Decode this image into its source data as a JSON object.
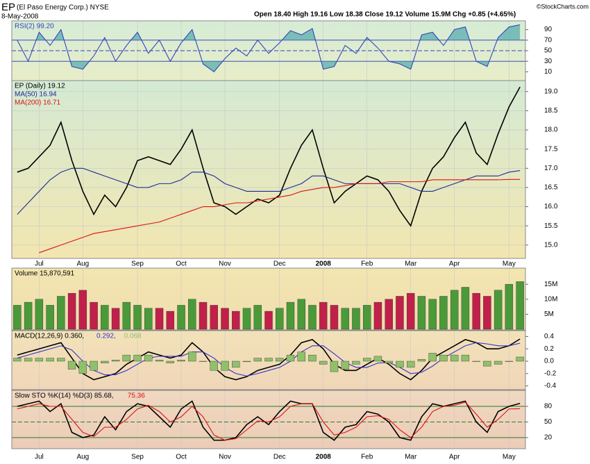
{
  "header": {
    "symbol": "EP",
    "name": "(El Paso Energy Corp.) NYSE",
    "date": "8-May-2008",
    "quote": "Open 18.40  High 19.16  Low 18.38  Close 19.12  Volume 15.9M  Chg +0.85 (+4.65%)",
    "credit": "©StockCharts.com"
  },
  "chart_data": [
    {
      "type": "line",
      "ylim": [
        0,
        100
      ],
      "yticks": [
        10,
        30,
        50,
        70,
        90
      ],
      "reference_lines": [
        30,
        50,
        70
      ],
      "fill_beyond": [
        30,
        70
      ],
      "series": [
        {
          "name": "RSI(2) 99.20",
          "color": "#3344bb",
          "values": [
            70,
            30,
            85,
            60,
            90,
            20,
            15,
            40,
            75,
            30,
            60,
            85,
            45,
            70,
            30,
            65,
            90,
            25,
            10,
            35,
            55,
            40,
            70,
            45,
            65,
            88,
            80,
            92,
            15,
            20,
            60,
            45,
            75,
            55,
            30,
            25,
            15,
            80,
            85,
            60,
            90,
            95,
            30,
            20,
            75,
            95,
            99.2
          ]
        }
      ]
    },
    {
      "type": "line",
      "categories": [
        null,
        null,
        "Jul",
        null,
        null,
        null,
        "Aug",
        null,
        null,
        null,
        null,
        "Sep",
        null,
        null,
        null,
        "Oct",
        null,
        null,
        null,
        "Nov",
        null,
        null,
        null,
        null,
        "Dec",
        null,
        null,
        null,
        "2008",
        null,
        null,
        null,
        "Feb",
        null,
        null,
        null,
        "Mar",
        null,
        null,
        null,
        "Apr",
        null,
        null,
        null,
        null,
        "May",
        null
      ],
      "ylim": [
        14.67,
        19.25
      ],
      "yticks": [
        {
          "value": 15,
          "label": "15.0"
        },
        {
          "value": 15.5,
          "label": "15.5"
        },
        {
          "value": 16,
          "label": "16.0"
        },
        {
          "value": 16.5,
          "label": "16.5"
        },
        {
          "value": 17,
          "label": "17.0"
        },
        {
          "value": 17.5,
          "label": "17.5"
        },
        {
          "value": 18,
          "label": "18.0"
        },
        {
          "value": 18.5,
          "label": "18.5"
        },
        {
          "value": 19,
          "label": "19.0"
        }
      ],
      "grid": true,
      "series": [
        {
          "name": "EP (Daily) 19.12",
          "color": "#000000",
          "values": [
            16.9,
            17.0,
            17.3,
            17.6,
            18.2,
            17.2,
            16.4,
            15.8,
            16.3,
            16.0,
            16.5,
            17.2,
            17.3,
            17.2,
            17.1,
            17.5,
            18.0,
            17.0,
            16.1,
            16.0,
            15.8,
            16.0,
            16.2,
            16.1,
            16.3,
            17.0,
            17.6,
            18.0,
            17.0,
            16.1,
            16.4,
            16.6,
            16.8,
            16.7,
            16.4,
            15.9,
            15.5,
            16.4,
            17.0,
            17.3,
            17.8,
            18.2,
            17.4,
            17.1,
            17.9,
            18.6,
            19.12
          ]
        },
        {
          "name": "MA(50) 16.94",
          "color": "#1a2a9a",
          "values": [
            15.8,
            16.1,
            16.4,
            16.7,
            16.9,
            17.0,
            17.0,
            16.9,
            16.8,
            16.7,
            16.6,
            16.5,
            16.5,
            16.6,
            16.6,
            16.7,
            16.9,
            16.9,
            16.8,
            16.6,
            16.5,
            16.4,
            16.4,
            16.4,
            16.4,
            16.5,
            16.6,
            16.8,
            16.8,
            16.7,
            16.6,
            16.6,
            16.6,
            16.6,
            16.6,
            16.6,
            16.5,
            16.4,
            16.4,
            16.5,
            16.6,
            16.7,
            16.8,
            16.8,
            16.8,
            16.9,
            16.94
          ]
        },
        {
          "name": "MA(200) 16.71",
          "color": "#dd1111",
          "values": [
            null,
            null,
            14.8,
            14.9,
            15.0,
            15.1,
            15.2,
            15.3,
            15.35,
            15.4,
            15.45,
            15.5,
            15.55,
            15.6,
            15.7,
            15.8,
            15.9,
            16.0,
            16.0,
            16.05,
            16.1,
            16.1,
            16.15,
            16.2,
            16.25,
            16.3,
            16.4,
            16.45,
            16.5,
            16.5,
            16.55,
            16.6,
            16.6,
            16.6,
            16.65,
            16.65,
            16.65,
            16.65,
            16.7,
            16.7,
            16.7,
            16.7,
            16.7,
            16.7,
            16.7,
            16.71,
            16.71
          ]
        }
      ]
    },
    {
      "type": "bar",
      "ylim": [
        0,
        19900000
      ],
      "yticks": [
        {
          "value": 5000000,
          "label": "5M"
        },
        {
          "value": 10000000,
          "label": "10M"
        },
        {
          "value": 15000000,
          "label": "15M"
        }
      ],
      "up_color": "#4a9a3a",
      "down_color": "#c0204a",
      "series": [
        {
          "name": "Volume 15,870,591",
          "color": "#000000",
          "values": [
            8000000,
            9000000,
            10000000,
            8000000,
            11000000,
            12000000,
            13000000,
            9000000,
            8000000,
            7000000,
            9000000,
            8000000,
            7000000,
            7000000,
            6000000,
            8000000,
            10000000,
            9000000,
            8000000,
            7000000,
            6000000,
            7000000,
            8000000,
            6000000,
            7000000,
            9000000,
            10000000,
            8000000,
            9000000,
            8000000,
            7000000,
            7000000,
            8000000,
            9000000,
            10000000,
            11000000,
            12000000,
            11000000,
            10000000,
            11000000,
            13000000,
            14000000,
            12000000,
            11000000,
            13000000,
            15000000,
            15870591
          ]
        }
      ]
    },
    {
      "type": "line",
      "ylim": [
        -0.45,
        0.45
      ],
      "yticks": [
        -0.4,
        -0.2,
        {
          "value": 0,
          "label": "0.0"
        },
        0.2,
        0.4
      ],
      "series": [
        {
          "name": "MACD(12,26,9) 0.360,",
          "color": "#000000",
          "values": [
            0.1,
            0.15,
            0.2,
            0.25,
            0.3,
            0.05,
            -0.2,
            -0.3,
            -0.25,
            -0.2,
            -0.05,
            0.05,
            0.15,
            0.1,
            0.05,
            0.1,
            0.3,
            0.15,
            -0.1,
            -0.25,
            -0.3,
            -0.25,
            -0.15,
            -0.1,
            -0.05,
            0.1,
            0.3,
            0.35,
            0.2,
            -0.05,
            -0.15,
            -0.15,
            -0.05,
            0.05,
            -0.05,
            -0.2,
            -0.3,
            -0.15,
            0.05,
            0.15,
            0.25,
            0.35,
            0.3,
            0.2,
            0.2,
            0.25,
            0.36
          ]
        },
        {
          "name": "0.292,",
          "color": "#3333cc",
          "values": [
            0.05,
            0.1,
            0.15,
            0.2,
            0.25,
            0.18,
            0.0,
            -0.15,
            -0.22,
            -0.22,
            -0.15,
            -0.05,
            0.05,
            0.08,
            0.08,
            0.08,
            0.15,
            0.15,
            0.05,
            -0.1,
            -0.2,
            -0.24,
            -0.2,
            -0.15,
            -0.1,
            0.0,
            0.15,
            0.25,
            0.25,
            0.12,
            -0.02,
            -0.1,
            -0.1,
            -0.03,
            -0.02,
            -0.1,
            -0.2,
            -0.18,
            -0.08,
            0.05,
            0.15,
            0.25,
            0.3,
            0.28,
            0.25,
            0.25,
            0.292
          ]
        },
        {
          "name": "0.068",
          "type": "bar",
          "color": "#8fc06a",
          "values": [
            0.05,
            0.05,
            0.05,
            0.05,
            0.05,
            -0.13,
            -0.2,
            -0.15,
            -0.03,
            0.02,
            0.1,
            0.1,
            0.1,
            0.02,
            -0.03,
            0.02,
            0.15,
            0,
            -0.15,
            -0.15,
            -0.1,
            -0.01,
            0.05,
            0.05,
            0.05,
            0.1,
            0.15,
            0.1,
            -0.05,
            -0.17,
            -0.13,
            -0.05,
            0.05,
            0.08,
            -0.03,
            -0.1,
            -0.1,
            0.03,
            0.13,
            0.1,
            0.1,
            0.1,
            0,
            -0.08,
            -0.05,
            0,
            0.068
          ]
        }
      ]
    },
    {
      "type": "line",
      "ylim": [
        0,
        100
      ],
      "yticks": [
        20,
        50,
        80
      ],
      "reference_lines": [
        20,
        50,
        80
      ],
      "series": [
        {
          "name": "Slow STO %K(14) %D(3) 85.68,",
          "color": "#000000",
          "values": [
            80,
            85,
            90,
            70,
            85,
            30,
            20,
            25,
            60,
            35,
            70,
            85,
            80,
            60,
            40,
            75,
            90,
            40,
            15,
            15,
            20,
            45,
            60,
            45,
            70,
            90,
            85,
            85,
            30,
            15,
            40,
            45,
            70,
            65,
            50,
            20,
            15,
            60,
            85,
            80,
            85,
            90,
            50,
            30,
            70,
            80,
            85.68
          ]
        },
        {
          "name": "75.36",
          "color": "#dd1111",
          "values": [
            75,
            80,
            85,
            80,
            80,
            55,
            30,
            22,
            40,
            40,
            55,
            75,
            82,
            70,
            50,
            60,
            80,
            60,
            25,
            15,
            18,
            35,
            52,
            50,
            60,
            80,
            85,
            85,
            50,
            25,
            30,
            40,
            60,
            62,
            55,
            35,
            20,
            40,
            70,
            80,
            82,
            88,
            65,
            40,
            55,
            75,
            75.36
          ]
        }
      ]
    }
  ]
}
